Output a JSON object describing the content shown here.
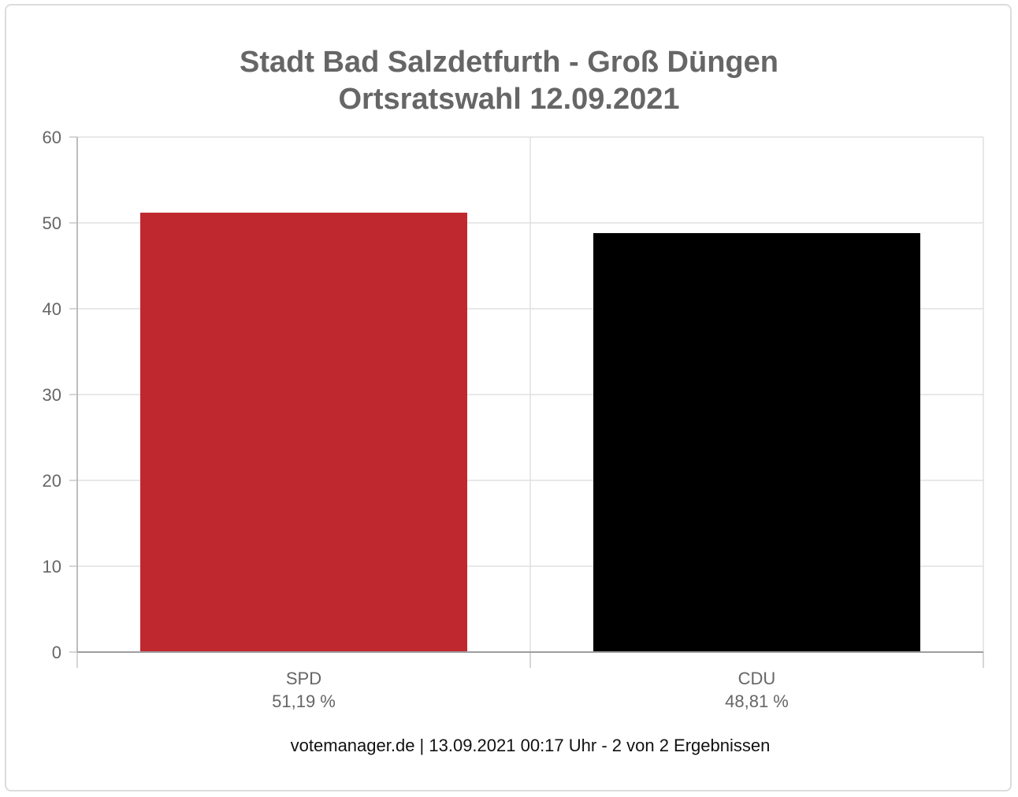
{
  "chart_data": {
    "type": "bar",
    "title_lines": [
      "Stadt Bad Salzdetfurth - Groß Düngen",
      "Ortsratswahl 12.09.2021"
    ],
    "categories": [
      "SPD",
      "CDU"
    ],
    "values": [
      51.19,
      48.81
    ],
    "value_labels": [
      "51,19 %",
      "48,81 %"
    ],
    "colors": [
      "#c0282f",
      "#000000"
    ],
    "yticks": [
      "0",
      "10",
      "20",
      "30",
      "40",
      "50",
      "60"
    ],
    "ylim": [
      0,
      60
    ],
    "grid": true
  },
  "footer": "votemanager.de | 13.09.2021 00:17 Uhr - 2 von 2 Ergebnissen"
}
